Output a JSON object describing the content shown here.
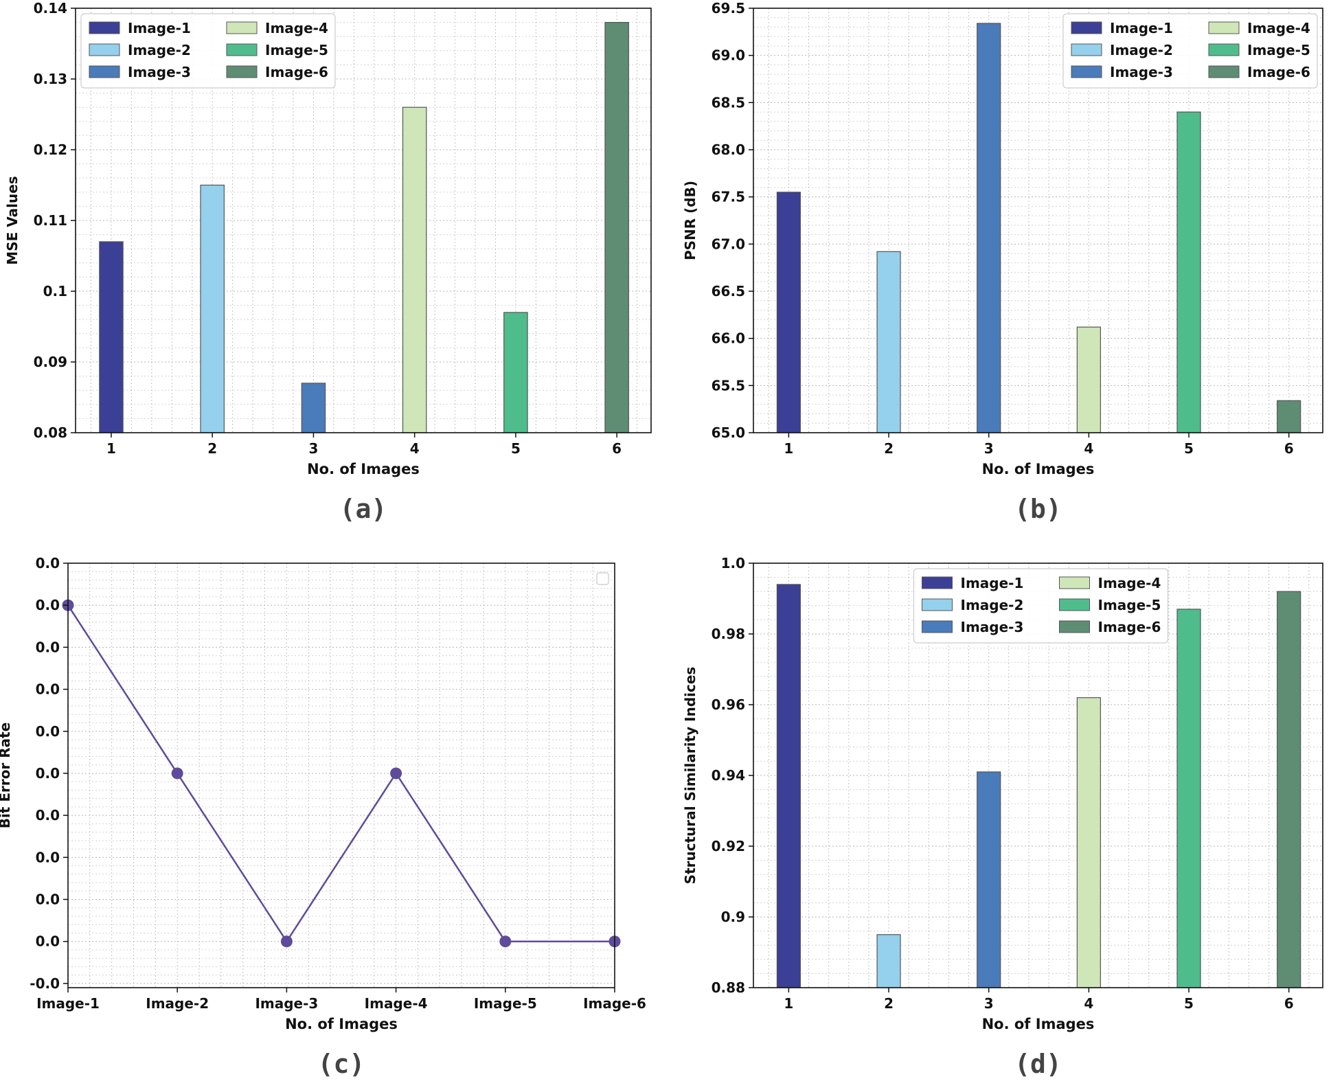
{
  "chart_data": [
    {
      "type": "bar",
      "caption": "(a)",
      "categories": [
        "1",
        "2",
        "3",
        "4",
        "5",
        "6"
      ],
      "values": [
        0.107,
        0.115,
        0.087,
        0.126,
        0.097,
        0.138
      ],
      "ylim": [
        0.08,
        0.14
      ],
      "yticks": [
        "0.08",
        "0.09",
        "0.1",
        "0.11",
        "0.12",
        "0.13",
        "0.14"
      ],
      "xlabel": "No. of Images",
      "ylabel": "MSE Values",
      "grid": true,
      "legend": [
        "Image-1",
        "Image-2",
        "Image-3",
        "Image-4",
        "Image-5",
        "Image-6"
      ],
      "legend_position": "upper-left"
    },
    {
      "type": "bar",
      "caption": "(b)",
      "categories": [
        "1",
        "2",
        "3",
        "4",
        "5",
        "6"
      ],
      "values": [
        67.55,
        66.92,
        69.34,
        66.12,
        68.4,
        65.34
      ],
      "ylim": [
        65.0,
        69.5
      ],
      "yticks": [
        "65.0",
        "65.5",
        "66.0",
        "66.5",
        "67.0",
        "67.5",
        "68.0",
        "68.5",
        "69.0",
        "69.5"
      ],
      "xlabel": "No. of Images",
      "ylabel": "PSNR (dB)",
      "grid": true,
      "legend": [
        "Image-1",
        "Image-2",
        "Image-3",
        "Image-4",
        "Image-5",
        "Image-6"
      ],
      "legend_position": "upper-right"
    },
    {
      "type": "line",
      "caption": "(c)",
      "categories": [
        "Image-1",
        "Image-2",
        "Image-3",
        "Image-4",
        "Image-5",
        "Image-6"
      ],
      "values": [
        0.0009,
        0.0005,
        0.0001,
        0.0005,
        0.0001,
        0.0001
      ],
      "ylim": [
        -1e-05,
        0.001
      ],
      "ytick_values": [
        0.0,
        0.0001,
        0.0002,
        0.0003,
        0.0004,
        0.0005,
        0.0006,
        0.0007,
        0.0008,
        0.0009,
        0.001
      ],
      "yticks": [
        "-0.0",
        "0.0",
        "0.0",
        "0.0",
        "0.0",
        "0.0",
        "0.0",
        "0.0",
        "0.0",
        "0.0",
        "0.0"
      ],
      "xlabel": "No. of Images",
      "ylabel": "Bit Error Rate",
      "grid": true,
      "legend": [],
      "legend_position": "upper-right"
    },
    {
      "type": "bar",
      "caption": "(d)",
      "categories": [
        "1",
        "2",
        "3",
        "4",
        "5",
        "6"
      ],
      "values": [
        0.994,
        0.895,
        0.941,
        0.962,
        0.987,
        0.992
      ],
      "ylim": [
        0.88,
        1.0
      ],
      "yticks": [
        "0.88",
        "0.9",
        "0.92",
        "0.94",
        "0.96",
        "0.98",
        "1.0"
      ],
      "xlabel": "No. of Images",
      "ylabel": "Structural Similarity Indices",
      "grid": true,
      "legend": [
        "Image-1",
        "Image-2",
        "Image-3",
        "Image-4",
        "Image-5",
        "Image-6"
      ],
      "legend_position": "upper-center"
    }
  ],
  "colors": {
    "bars": [
      "#3b3f95",
      "#95d0ec",
      "#4a7bbb",
      "#cee6b8",
      "#4fbc8c",
      "#5e8d74"
    ],
    "line": "#5f4b9b",
    "grid": "#b5b5b5"
  }
}
